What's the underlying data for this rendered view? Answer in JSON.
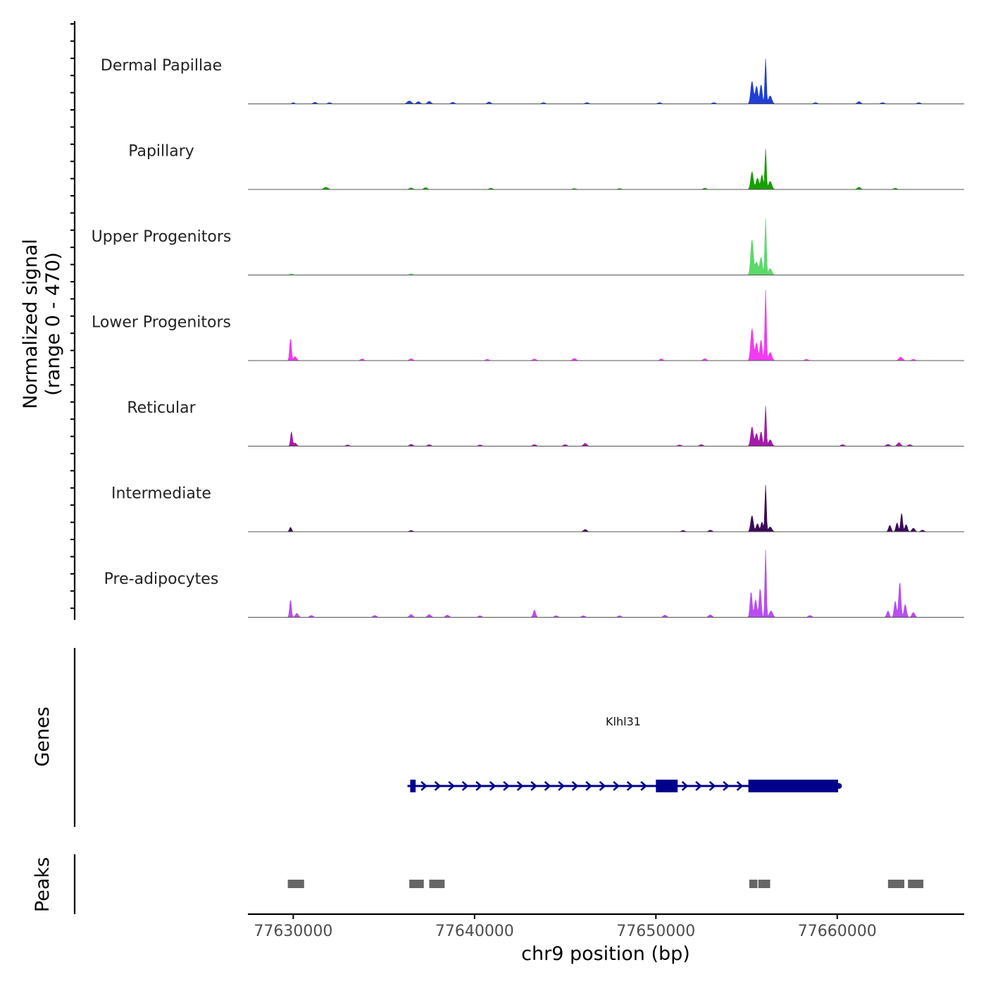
{
  "chart_data": {
    "type": "area",
    "region": {
      "chromosome": "chr9",
      "start": 77627500,
      "end": 77667000
    },
    "ylabel": "Normalized signal",
    "ylabel_range": "(range 0 - 470)",
    "ylim": [
      0,
      470
    ],
    "xlabel": "chr9 position (bp)",
    "xticks": [
      77630000,
      77640000,
      77650000,
      77660000
    ],
    "xtick_labels": [
      "77630000",
      "77640000",
      "77650000",
      "77660000"
    ],
    "series": [
      {
        "name": "Dermal Papillae",
        "color": "#1f3fd6",
        "peaks": [
          {
            "pos": 77630000,
            "h": 8,
            "w": 150
          },
          {
            "pos": 77631200,
            "h": 10,
            "w": 200
          },
          {
            "pos": 77632000,
            "h": 8,
            "w": 200
          },
          {
            "pos": 77636400,
            "h": 18,
            "w": 250
          },
          {
            "pos": 77636900,
            "h": 14,
            "w": 200
          },
          {
            "pos": 77637500,
            "h": 16,
            "w": 200
          },
          {
            "pos": 77638800,
            "h": 10,
            "w": 200
          },
          {
            "pos": 77640800,
            "h": 12,
            "w": 200
          },
          {
            "pos": 77643800,
            "h": 8,
            "w": 200
          },
          {
            "pos": 77646200,
            "h": 8,
            "w": 200
          },
          {
            "pos": 77650200,
            "h": 8,
            "w": 200
          },
          {
            "pos": 77653200,
            "h": 8,
            "w": 200
          },
          {
            "pos": 77655300,
            "h": 140,
            "w": 160
          },
          {
            "pos": 77655550,
            "h": 110,
            "w": 160
          },
          {
            "pos": 77655800,
            "h": 120,
            "w": 140
          },
          {
            "pos": 77656050,
            "h": 280,
            "w": 90
          },
          {
            "pos": 77656300,
            "h": 50,
            "w": 200
          },
          {
            "pos": 77658800,
            "h": 8,
            "w": 200
          },
          {
            "pos": 77661200,
            "h": 14,
            "w": 200
          },
          {
            "pos": 77662500,
            "h": 8,
            "w": 200
          },
          {
            "pos": 77664500,
            "h": 8,
            "w": 200
          }
        ]
      },
      {
        "name": "Papillary",
        "color": "#199e05",
        "peaks": [
          {
            "pos": 77631800,
            "h": 14,
            "w": 250
          },
          {
            "pos": 77636500,
            "h": 10,
            "w": 200
          },
          {
            "pos": 77637300,
            "h": 12,
            "w": 200
          },
          {
            "pos": 77640900,
            "h": 8,
            "w": 200
          },
          {
            "pos": 77645500,
            "h": 6,
            "w": 200
          },
          {
            "pos": 77648000,
            "h": 6,
            "w": 200
          },
          {
            "pos": 77652700,
            "h": 8,
            "w": 200
          },
          {
            "pos": 77655300,
            "h": 110,
            "w": 160
          },
          {
            "pos": 77655600,
            "h": 70,
            "w": 180
          },
          {
            "pos": 77655850,
            "h": 90,
            "w": 140
          },
          {
            "pos": 77656050,
            "h": 250,
            "w": 90
          },
          {
            "pos": 77656300,
            "h": 50,
            "w": 200
          },
          {
            "pos": 77661200,
            "h": 14,
            "w": 200
          },
          {
            "pos": 77663200,
            "h": 8,
            "w": 200
          }
        ]
      },
      {
        "name": "Upper Progenitors",
        "color": "#5bd96a",
        "peaks": [
          {
            "pos": 77629900,
            "h": 8,
            "w": 200
          },
          {
            "pos": 77636500,
            "h": 8,
            "w": 200
          },
          {
            "pos": 77655300,
            "h": 220,
            "w": 160
          },
          {
            "pos": 77655550,
            "h": 80,
            "w": 180
          },
          {
            "pos": 77655800,
            "h": 110,
            "w": 160
          },
          {
            "pos": 77656050,
            "h": 350,
            "w": 90
          },
          {
            "pos": 77656300,
            "h": 40,
            "w": 200
          }
        ]
      },
      {
        "name": "Lower Progenitors",
        "color": "#f23bf0",
        "peaks": [
          {
            "pos": 77629850,
            "h": 140,
            "w": 110
          },
          {
            "pos": 77630100,
            "h": 25,
            "w": 180
          },
          {
            "pos": 77633800,
            "h": 10,
            "w": 200
          },
          {
            "pos": 77636500,
            "h": 12,
            "w": 200
          },
          {
            "pos": 77640700,
            "h": 8,
            "w": 200
          },
          {
            "pos": 77643300,
            "h": 10,
            "w": 200
          },
          {
            "pos": 77645500,
            "h": 14,
            "w": 200
          },
          {
            "pos": 77650300,
            "h": 10,
            "w": 200
          },
          {
            "pos": 77652700,
            "h": 12,
            "w": 200
          },
          {
            "pos": 77655300,
            "h": 200,
            "w": 160
          },
          {
            "pos": 77655550,
            "h": 110,
            "w": 160
          },
          {
            "pos": 77655800,
            "h": 130,
            "w": 140
          },
          {
            "pos": 77656050,
            "h": 440,
            "w": 90
          },
          {
            "pos": 77656300,
            "h": 50,
            "w": 200
          },
          {
            "pos": 77658300,
            "h": 8,
            "w": 200
          },
          {
            "pos": 77663500,
            "h": 22,
            "w": 220
          },
          {
            "pos": 77664200,
            "h": 8,
            "w": 200
          }
        ]
      },
      {
        "name": "Reticular",
        "color": "#a31ba6",
        "peaks": [
          {
            "pos": 77629900,
            "h": 90,
            "w": 110
          },
          {
            "pos": 77630100,
            "h": 20,
            "w": 180
          },
          {
            "pos": 77633000,
            "h": 8,
            "w": 200
          },
          {
            "pos": 77636500,
            "h": 12,
            "w": 200
          },
          {
            "pos": 77637500,
            "h": 10,
            "w": 200
          },
          {
            "pos": 77640300,
            "h": 8,
            "w": 200
          },
          {
            "pos": 77643300,
            "h": 10,
            "w": 200
          },
          {
            "pos": 77645000,
            "h": 10,
            "w": 200
          },
          {
            "pos": 77646100,
            "h": 18,
            "w": 200
          },
          {
            "pos": 77651300,
            "h": 8,
            "w": 200
          },
          {
            "pos": 77652500,
            "h": 10,
            "w": 200
          },
          {
            "pos": 77655300,
            "h": 120,
            "w": 160
          },
          {
            "pos": 77655550,
            "h": 80,
            "w": 160
          },
          {
            "pos": 77655800,
            "h": 90,
            "w": 140
          },
          {
            "pos": 77656050,
            "h": 250,
            "w": 90
          },
          {
            "pos": 77656300,
            "h": 40,
            "w": 200
          },
          {
            "pos": 77660300,
            "h": 10,
            "w": 200
          },
          {
            "pos": 77662800,
            "h": 12,
            "w": 200
          },
          {
            "pos": 77663400,
            "h": 22,
            "w": 200
          },
          {
            "pos": 77664000,
            "h": 10,
            "w": 200
          }
        ]
      },
      {
        "name": "Intermediate",
        "color": "#3b0a57",
        "peaks": [
          {
            "pos": 77629850,
            "h": 28,
            "w": 130
          },
          {
            "pos": 77636500,
            "h": 8,
            "w": 200
          },
          {
            "pos": 77646100,
            "h": 14,
            "w": 200
          },
          {
            "pos": 77651500,
            "h": 8,
            "w": 200
          },
          {
            "pos": 77653000,
            "h": 10,
            "w": 200
          },
          {
            "pos": 77655300,
            "h": 100,
            "w": 160
          },
          {
            "pos": 77655600,
            "h": 50,
            "w": 160
          },
          {
            "pos": 77655850,
            "h": 60,
            "w": 140
          },
          {
            "pos": 77656050,
            "h": 290,
            "w": 90
          },
          {
            "pos": 77656300,
            "h": 30,
            "w": 200
          },
          {
            "pos": 77662900,
            "h": 40,
            "w": 150
          },
          {
            "pos": 77663300,
            "h": 55,
            "w": 140
          },
          {
            "pos": 77663550,
            "h": 115,
            "w": 120
          },
          {
            "pos": 77663800,
            "h": 45,
            "w": 150
          },
          {
            "pos": 77664200,
            "h": 22,
            "w": 180
          },
          {
            "pos": 77664700,
            "h": 10,
            "w": 200
          }
        ]
      },
      {
        "name": "Pre-adipocytes",
        "color": "#b84df2",
        "peaks": [
          {
            "pos": 77629850,
            "h": 110,
            "w": 110
          },
          {
            "pos": 77630200,
            "h": 25,
            "w": 180
          },
          {
            "pos": 77631000,
            "h": 12,
            "w": 200
          },
          {
            "pos": 77634500,
            "h": 12,
            "w": 200
          },
          {
            "pos": 77636500,
            "h": 18,
            "w": 200
          },
          {
            "pos": 77637500,
            "h": 18,
            "w": 200
          },
          {
            "pos": 77638500,
            "h": 14,
            "w": 200
          },
          {
            "pos": 77640300,
            "h": 10,
            "w": 200
          },
          {
            "pos": 77643300,
            "h": 45,
            "w": 150
          },
          {
            "pos": 77644500,
            "h": 10,
            "w": 200
          },
          {
            "pos": 77646000,
            "h": 10,
            "w": 200
          },
          {
            "pos": 77648000,
            "h": 10,
            "w": 200
          },
          {
            "pos": 77650500,
            "h": 14,
            "w": 200
          },
          {
            "pos": 77653000,
            "h": 16,
            "w": 200
          },
          {
            "pos": 77655250,
            "h": 160,
            "w": 130
          },
          {
            "pos": 77655500,
            "h": 110,
            "w": 150
          },
          {
            "pos": 77655750,
            "h": 180,
            "w": 130
          },
          {
            "pos": 77656050,
            "h": 420,
            "w": 90
          },
          {
            "pos": 77656350,
            "h": 40,
            "w": 200
          },
          {
            "pos": 77658500,
            "h": 12,
            "w": 200
          },
          {
            "pos": 77662800,
            "h": 40,
            "w": 150
          },
          {
            "pos": 77663200,
            "h": 100,
            "w": 140
          },
          {
            "pos": 77663450,
            "h": 220,
            "w": 130
          },
          {
            "pos": 77663750,
            "h": 80,
            "w": 150
          },
          {
            "pos": 77664200,
            "h": 30,
            "w": 180
          }
        ]
      }
    ],
    "genes_track": {
      "label": "Genes",
      "genes": [
        {
          "name": "Klhl31",
          "strand": "+",
          "color": "#00008b",
          "start": 77636300,
          "end": 77660100,
          "exons": [
            {
              "start": 77636450,
              "end": 77636750
            },
            {
              "start": 77650000,
              "end": 77651200
            },
            {
              "start": 77655100,
              "end": 77660050
            }
          ]
        }
      ]
    },
    "peaks_track": {
      "label": "Peaks",
      "color": "#666666",
      "regions": [
        {
          "start": 77629700,
          "end": 77630600
        },
        {
          "start": 77636400,
          "end": 77637200
        },
        {
          "start": 77637500,
          "end": 77638350
        },
        {
          "start": 77655150,
          "end": 77655600
        },
        {
          "start": 77655650,
          "end": 77656300
        },
        {
          "start": 77662800,
          "end": 77663700
        },
        {
          "start": 77663900,
          "end": 77664750
        }
      ]
    }
  }
}
